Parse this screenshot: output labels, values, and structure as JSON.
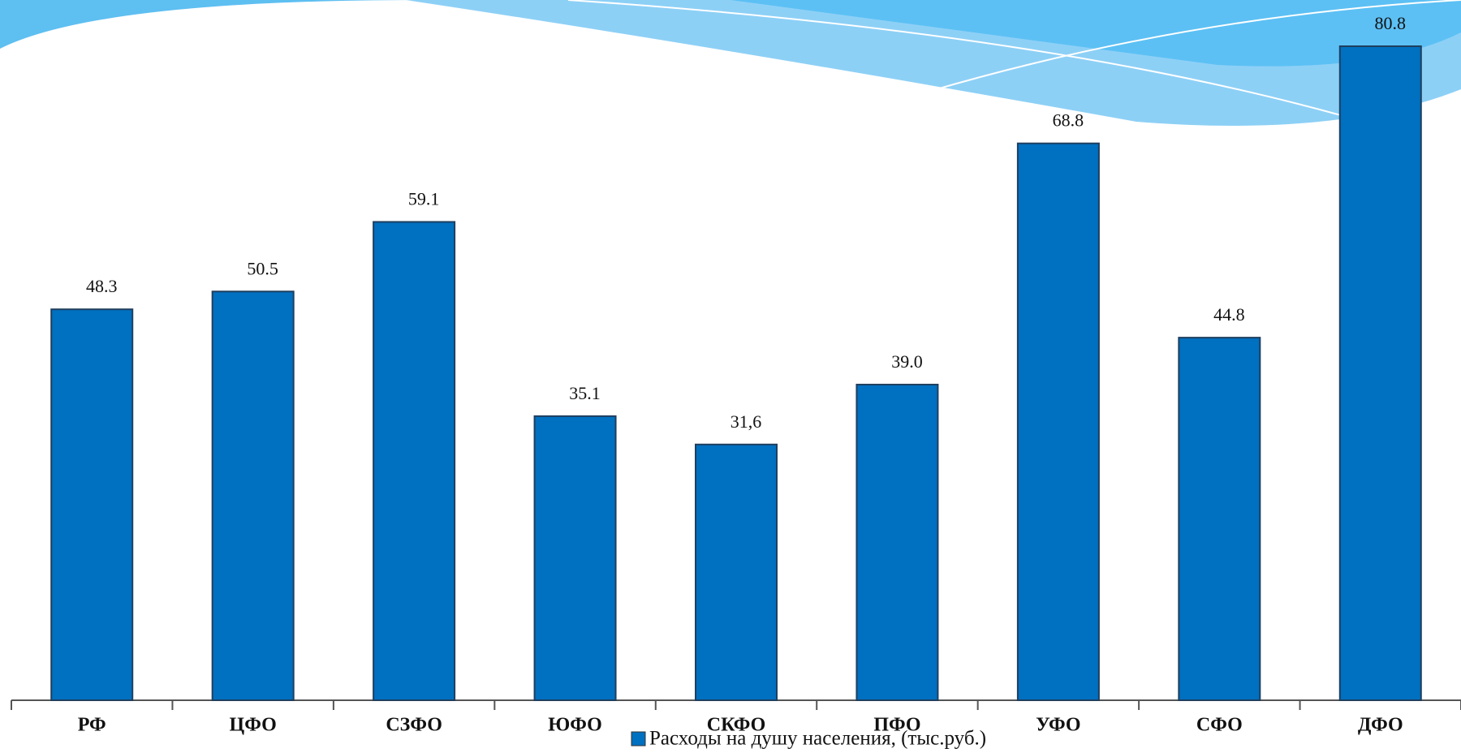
{
  "chart_data": {
    "type": "bar",
    "categories": [
      "РФ",
      "ЦФО",
      "СЗФО",
      "ЮФО",
      "СКФО",
      "ПФО",
      "УФО",
      "СФО",
      "ДФО"
    ],
    "series": [
      {
        "name": "Расходы на душу населения, (тыс.руб.)",
        "color": "#0070c0",
        "values": [
          48.3,
          50.5,
          59.1,
          35.1,
          31.6,
          39.0,
          68.8,
          44.8,
          80.8
        ],
        "value_labels": [
          "48.3",
          "50.5",
          "59.1",
          "35.1",
          "31,6",
          "39.0",
          "68.8",
          "44.8",
          "80.8"
        ]
      }
    ],
    "legend": "bottom"
  }
}
